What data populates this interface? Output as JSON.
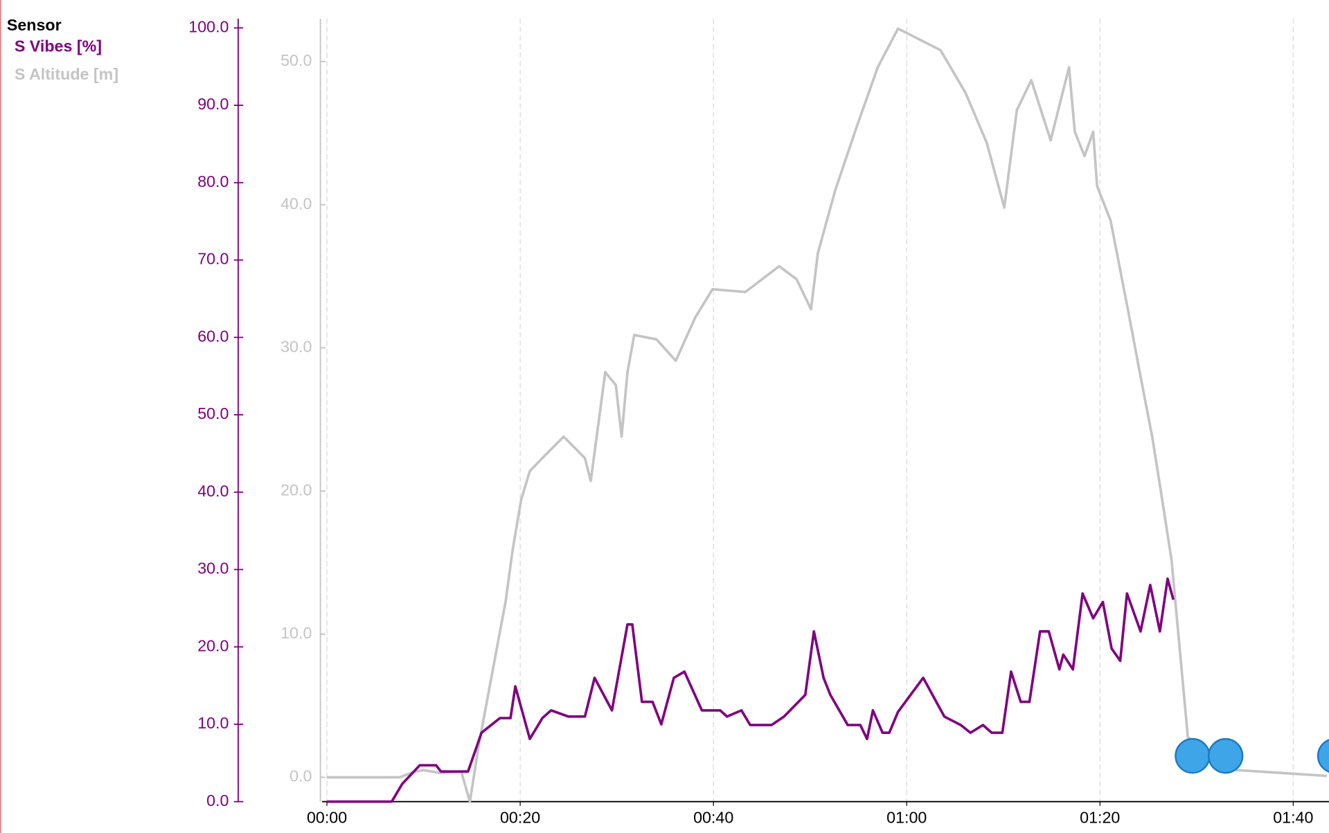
{
  "chart_data": {
    "type": "line",
    "legend_title": "Sensor",
    "legend": "top-left",
    "grid": true,
    "xlim": [
      -0.5,
      103.7
    ],
    "xticks": [
      {
        "value": 0,
        "label": "00:00"
      },
      {
        "value": 20,
        "label": "00:20"
      },
      {
        "value": 40,
        "label": "00:40"
      },
      {
        "value": 60,
        "label": "01:00"
      },
      {
        "value": 80,
        "label": "01:20"
      },
      {
        "value": 100,
        "label": "01:40"
      }
    ],
    "ylim": [
      0,
      101.2
    ],
    "yticks": [
      {
        "value": 0,
        "label": "0.0"
      },
      {
        "value": 10,
        "label": "10.0"
      },
      {
        "value": 20,
        "label": "20.0"
      },
      {
        "value": 30,
        "label": "30.0"
      },
      {
        "value": 40,
        "label": "40.0"
      },
      {
        "value": 50,
        "label": "50.0"
      },
      {
        "value": 60,
        "label": "60.0"
      },
      {
        "value": 70,
        "label": "70.0"
      },
      {
        "value": 80,
        "label": "80.0"
      },
      {
        "value": 90,
        "label": "90.0"
      },
      {
        "value": 100,
        "label": "100.0"
      }
    ],
    "y2lim": [
      -1.7,
      53.0
    ],
    "y2ticks": [
      {
        "value": 0,
        "label": "0.0"
      },
      {
        "value": 10,
        "label": "10.0"
      },
      {
        "value": 20,
        "label": "20.0"
      },
      {
        "value": 30,
        "label": "30.0"
      },
      {
        "value": 40,
        "label": "40.0"
      },
      {
        "value": 50,
        "label": "50.0"
      }
    ],
    "series": [
      {
        "name": "S Vibes [%]",
        "color": "#800080",
        "axis": "y",
        "x": [
          0,
          6.7,
          7.8,
          9.6,
          11.3,
          11.8,
          14.6,
          16,
          17.9,
          19,
          19.5,
          21,
          22.3,
          23.2,
          25,
          26.7,
          27.7,
          29.5,
          31.1,
          31.6,
          32.6,
          33.7,
          34.6,
          35.9,
          37,
          38.8,
          40.7,
          41.4,
          42.9,
          43.8,
          46,
          47.3,
          49.5,
          50.4,
          51.4,
          52.1,
          53.9,
          55.2,
          55.9,
          56.5,
          57.5,
          58.2,
          59.1,
          61.7,
          63.9,
          65.6,
          66.6,
          67.9,
          68.8,
          69.9,
          70.8,
          71.8,
          72.7,
          73.8,
          74.7,
          75.8,
          76.2,
          77.2,
          78.2,
          79.3,
          80.3,
          81.2,
          82.1,
          82.8,
          84.2,
          85.2,
          86.2,
          87,
          87.6
        ],
        "values": [
          0,
          0,
          2.3,
          4.7,
          4.7,
          3.9,
          3.9,
          8.9,
          10.8,
          10.8,
          14.9,
          8.1,
          10.8,
          11.8,
          11,
          11,
          16,
          11.8,
          22.9,
          22.9,
          12.9,
          12.9,
          10,
          16,
          16.8,
          11.8,
          11.8,
          11,
          11.8,
          9.9,
          9.9,
          11,
          13.8,
          22,
          16,
          13.8,
          9.9,
          9.9,
          8.1,
          11.8,
          8.9,
          8.9,
          11.6,
          16,
          11,
          9.9,
          8.9,
          9.9,
          8.9,
          8.9,
          16.8,
          12.9,
          12.9,
          22,
          22,
          17.1,
          19,
          17.1,
          26.9,
          23.7,
          25.8,
          19.8,
          18.2,
          26.9,
          22,
          28,
          22,
          28.8,
          26.1
        ]
      },
      {
        "name": "S Altitude [m]",
        "color": "#c4c4c4",
        "axis": "y2",
        "x": [
          0,
          7.5,
          9.1,
          10,
          11.8,
          13.9,
          14.8,
          15.7,
          17,
          18.5,
          19.2,
          20.1,
          21,
          22.3,
          24.5,
          26.7,
          27.3,
          28.8,
          29.9,
          30.5,
          31.1,
          31.8,
          34.1,
          36.1,
          38.1,
          39.9,
          43.3,
          46.8,
          48.6,
          50.1,
          50.8,
          52.6,
          54.8,
          57,
          59.1,
          60,
          63.5,
          66.1,
          68.3,
          70.1,
          71.4,
          72.9,
          74.9,
          76.8,
          77.4,
          78.4,
          79.3,
          79.7,
          81.1,
          82.8,
          84.2,
          85.4,
          86.3,
          87.4,
          89.1,
          94.2,
          103.5
        ],
        "values": [
          0,
          0,
          0.4,
          0.5,
          0.3,
          0.4,
          -1.7,
          2.2,
          6.9,
          12.3,
          15.8,
          19.4,
          21.4,
          22.3,
          23.8,
          22.3,
          20.7,
          28.3,
          27.4,
          23.8,
          28.3,
          30.9,
          30.6,
          29.1,
          32.1,
          34.1,
          33.9,
          35.7,
          34.8,
          32.7,
          36.6,
          41,
          45.4,
          49.6,
          52.3,
          52,
          50.8,
          47.8,
          44.3,
          39.8,
          46.6,
          48.7,
          44.5,
          49.6,
          45.1,
          43.4,
          45.1,
          41.3,
          38.9,
          33,
          28,
          23.8,
          20,
          15.2,
          2.8,
          0.5,
          0.1
        ]
      }
    ]
  }
}
